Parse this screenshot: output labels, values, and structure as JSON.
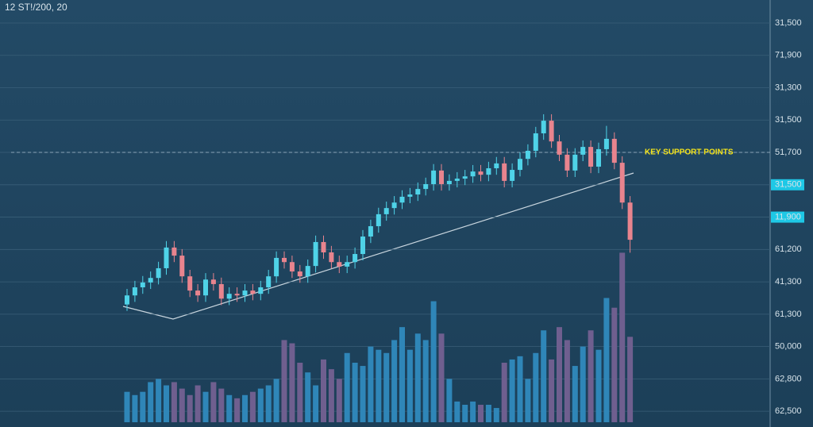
{
  "chart_data": {
    "type": "candlestick",
    "title": "12 ST!/200, 20",
    "annotation": "KEY SUPPORT POINTS",
    "support_line": 8,
    "up_color": "#4fd3e8",
    "down_color": "#e8848e",
    "volume_up_color": "#2f86b8",
    "volume_down_color": "#6f5f8f",
    "highlight_color": "#1ec8e6",
    "highlighted_yticks": [
      5,
      6
    ],
    "grid": true,
    "ylim": [
      -0.34,
      12.5
    ],
    "yticks": [
      {
        "value": 12,
        "label": "31,500"
      },
      {
        "value": 11,
        "label": "71,900"
      },
      {
        "value": 10,
        "label": "31,300"
      },
      {
        "value": 9,
        "label": "31,500"
      },
      {
        "value": 8,
        "label": "51,700"
      },
      {
        "value": 7,
        "label": "31,500"
      },
      {
        "value": 6,
        "label": "11,900"
      },
      {
        "value": 5,
        "label": "61,200"
      },
      {
        "value": 4,
        "label": "41,300"
      },
      {
        "value": 3,
        "label": "61,300"
      },
      {
        "value": 2,
        "label": "50,000"
      },
      {
        "value": 1,
        "label": "62,800"
      },
      {
        "value": 0,
        "label": "62,500"
      }
    ],
    "open": [
      3.3,
      3.58,
      3.83,
      3.98,
      4.12,
      4.42,
      5.06,
      4.81,
      4.17,
      3.73,
      3.58,
      4.07,
      3.93,
      3.48,
      3.63,
      3.58,
      3.73,
      3.63,
      3.83,
      4.17,
      4.74,
      4.61,
      4.32,
      4.17,
      4.49,
      5.23,
      4.91,
      4.61,
      4.47,
      4.61,
      4.86,
      5.4,
      5.72,
      6.09,
      6.28,
      6.45,
      6.63,
      6.7,
      6.87,
      7.02,
      7.44,
      7.02,
      7.12,
      7.19,
      7.26,
      7.41,
      7.31,
      7.51,
      7.66,
      7.12,
      7.46,
      7.8,
      8.05,
      8.59,
      8.98,
      8.34,
      7.93,
      7.44,
      7.93,
      8.17,
      7.56,
      8.1,
      8.42,
      7.68,
      6.45
    ],
    "high": [
      3.78,
      4.03,
      4.18,
      4.32,
      4.62,
      5.26,
      5.26,
      5.01,
      4.37,
      3.93,
      4.27,
      4.27,
      4.13,
      3.83,
      3.83,
      3.93,
      3.93,
      4.03,
      4.37,
      4.94,
      4.94,
      4.81,
      4.52,
      4.69,
      5.43,
      5.43,
      5.11,
      4.81,
      4.81,
      5.06,
      5.6,
      5.92,
      6.29,
      6.48,
      6.65,
      6.83,
      6.9,
      7.07,
      7.22,
      7.64,
      7.64,
      7.32,
      7.39,
      7.46,
      7.61,
      7.61,
      7.71,
      7.86,
      7.86,
      7.66,
      8.0,
      8.25,
      8.79,
      9.18,
      9.18,
      8.54,
      8.13,
      8.13,
      8.37,
      8.37,
      8.3,
      8.82,
      8.62,
      7.88,
      6.65
    ],
    "low": [
      3.1,
      3.38,
      3.63,
      3.78,
      3.92,
      4.22,
      4.61,
      3.97,
      3.53,
      3.38,
      3.38,
      3.73,
      3.28,
      3.28,
      3.38,
      3.38,
      3.43,
      3.43,
      3.63,
      3.97,
      4.41,
      4.12,
      3.97,
      3.97,
      4.29,
      4.71,
      4.41,
      4.27,
      4.27,
      4.41,
      4.66,
      5.2,
      5.52,
      5.89,
      6.08,
      6.25,
      6.43,
      6.5,
      6.67,
      6.82,
      6.82,
      6.82,
      6.92,
      6.99,
      7.06,
      7.11,
      7.11,
      7.31,
      6.92,
      6.92,
      7.26,
      7.6,
      7.85,
      8.39,
      8.14,
      7.73,
      7.24,
      7.24,
      7.73,
      7.36,
      7.36,
      7.9,
      7.48,
      6.25,
      4.9
    ],
    "close": [
      3.58,
      3.83,
      3.98,
      4.12,
      4.42,
      5.06,
      4.81,
      4.17,
      3.73,
      3.58,
      4.07,
      3.93,
      3.48,
      3.63,
      3.58,
      3.73,
      3.63,
      3.83,
      4.17,
      4.74,
      4.61,
      4.32,
      4.17,
      4.49,
      5.23,
      4.91,
      4.61,
      4.47,
      4.61,
      4.86,
      5.4,
      5.72,
      6.09,
      6.28,
      6.45,
      6.63,
      6.7,
      6.87,
      7.02,
      7.44,
      7.02,
      7.12,
      7.19,
      7.26,
      7.41,
      7.31,
      7.51,
      7.66,
      7.12,
      7.46,
      7.8,
      8.05,
      8.59,
      8.98,
      8.34,
      7.93,
      7.44,
      7.93,
      8.17,
      7.56,
      8.1,
      8.42,
      7.68,
      6.45,
      5.3
    ],
    "volume": [
      0.6,
      0.5,
      0.6,
      0.9,
      1.0,
      0.8,
      0.9,
      0.7,
      0.5,
      0.8,
      0.6,
      0.9,
      0.7,
      0.5,
      0.4,
      0.5,
      0.6,
      0.7,
      0.8,
      1.0,
      2.2,
      2.1,
      1.5,
      1.2,
      0.8,
      1.6,
      1.3,
      1.0,
      1.8,
      1.5,
      1.4,
      2.0,
      1.9,
      1.8,
      2.2,
      2.6,
      1.9,
      2.4,
      2.2,
      3.4,
      2.4,
      1.0,
      0.3,
      0.2,
      0.3,
      0.2,
      0.2,
      0.1,
      1.5,
      1.6,
      1.7,
      1.0,
      1.8,
      2.5,
      1.6,
      2.6,
      2.2,
      1.4,
      2.0,
      2.5,
      1.9,
      3.5,
      3.2,
      4.9,
      2.3
    ]
  }
}
